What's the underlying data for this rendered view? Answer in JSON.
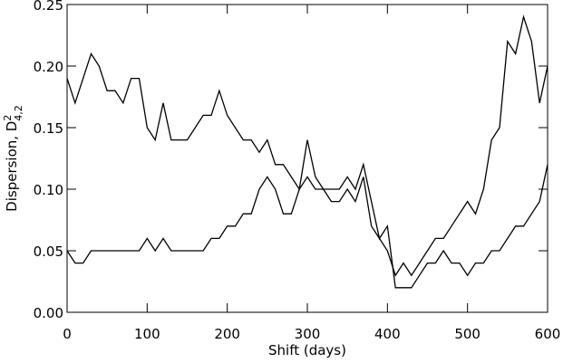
{
  "chart_data": {
    "type": "line",
    "xlabel": "Shift (days)",
    "ylabel": "Dispersion, D",
    "ylabel_sup": "2",
    "ylabel_sub": "4,2",
    "x": [
      0,
      10,
      20,
      30,
      40,
      50,
      60,
      70,
      80,
      90,
      100,
      110,
      120,
      130,
      140,
      150,
      160,
      170,
      180,
      190,
      200,
      210,
      220,
      230,
      240,
      250,
      260,
      270,
      280,
      290,
      300,
      310,
      320,
      330,
      340,
      350,
      360,
      370,
      380,
      390,
      400,
      410,
      420,
      430,
      440,
      450,
      460,
      470,
      480,
      490,
      500,
      510,
      520,
      530,
      540,
      550,
      560,
      570,
      580,
      590,
      600
    ],
    "series": [
      {
        "color": "#000000",
        "values": [
          0.19,
          0.17,
          0.19,
          0.21,
          0.2,
          0.18,
          0.18,
          0.17,
          0.19,
          0.19,
          0.15,
          0.14,
          0.17,
          0.14,
          0.14,
          0.14,
          0.15,
          0.16,
          0.16,
          0.18,
          0.16,
          0.15,
          0.14,
          0.14,
          0.13,
          0.14,
          0.12,
          0.12,
          0.11,
          0.1,
          0.14,
          0.11,
          0.1,
          0.09,
          0.09,
          0.1,
          0.09,
          0.11,
          0.07,
          0.06,
          0.05,
          0.03,
          0.04,
          0.03,
          0.04,
          0.05,
          0.06,
          0.06,
          0.07,
          0.08,
          0.09,
          0.08,
          0.1,
          0.14,
          0.15,
          0.22,
          0.21,
          0.24,
          0.22,
          0.17,
          0.2
        ]
      },
      {
        "color": "#000000",
        "values": [
          0.05,
          0.04,
          0.04,
          0.05,
          0.05,
          0.05,
          0.05,
          0.05,
          0.05,
          0.05,
          0.06,
          0.05,
          0.06,
          0.05,
          0.05,
          0.05,
          0.05,
          0.05,
          0.06,
          0.06,
          0.07,
          0.07,
          0.08,
          0.08,
          0.1,
          0.11,
          0.1,
          0.08,
          0.08,
          0.1,
          0.11,
          0.1,
          0.1,
          0.1,
          0.1,
          0.11,
          0.1,
          0.12,
          0.09,
          0.06,
          0.07,
          0.02,
          0.02,
          0.02,
          0.03,
          0.04,
          0.04,
          0.05,
          0.04,
          0.04,
          0.03,
          0.04,
          0.04,
          0.05,
          0.05,
          0.06,
          0.07,
          0.07,
          0.08,
          0.09,
          0.12
        ]
      }
    ],
    "xlim": [
      0,
      600
    ],
    "xticks": [
      0,
      100,
      200,
      300,
      400,
      500,
      600
    ],
    "ylim": [
      0,
      0.25
    ],
    "yticks": [
      {
        "value": 0,
        "label": "0.00"
      },
      {
        "value": 0.05,
        "label": "0.05"
      },
      {
        "value": 0.1,
        "label": "0.10"
      },
      {
        "value": 0.15,
        "label": "0.15"
      },
      {
        "value": 0.2,
        "label": "0.20"
      },
      {
        "value": 0.25,
        "label": "0.25"
      }
    ],
    "grid": false
  }
}
